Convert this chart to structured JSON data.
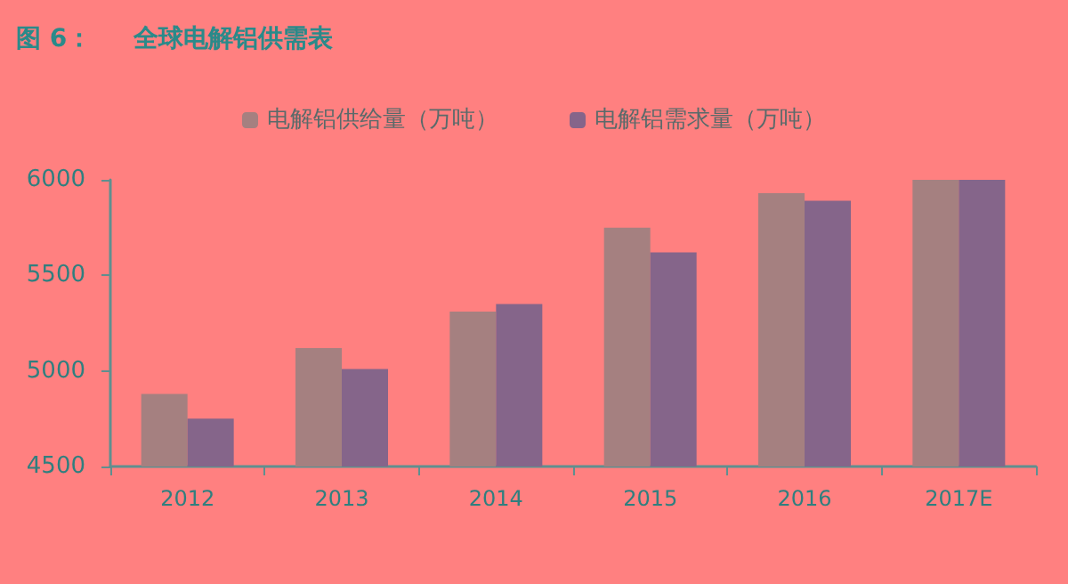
{
  "chart_data": {
    "type": "bar",
    "title": "图 6：",
    "subtitle": "全球电解铝供需表",
    "categories": [
      "2012",
      "2013",
      "2014",
      "2015",
      "2016",
      "2017E"
    ],
    "series": [
      {
        "name": "电解铝供给量（万吨）",
        "color": "#a58080",
        "values": [
          4880,
          5120,
          5310,
          5750,
          5930,
          6000
        ]
      },
      {
        "name": "电解铝需求量（万吨）",
        "color": "#85658a",
        "values": [
          4750,
          5010,
          5350,
          5620,
          5890,
          6000
        ]
      }
    ],
    "ylim": [
      4500,
      6000
    ],
    "yticks": [
      4500,
      5000,
      5500,
      6000
    ],
    "grid": false,
    "legend": "top"
  }
}
